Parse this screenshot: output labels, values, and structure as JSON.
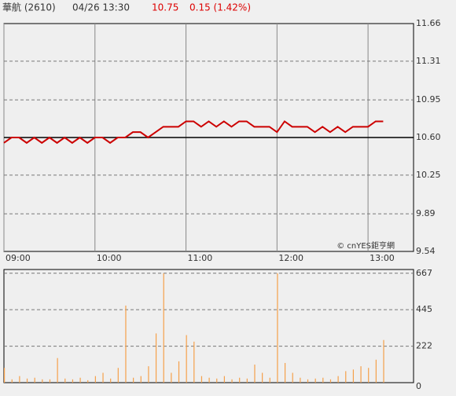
{
  "header": {
    "name": "華航 (2610)",
    "time": "04/26 13:30",
    "price": "10.75",
    "change": "0.15 (1.42%)"
  },
  "watermark": "© cnYES鉅亨網",
  "chart_data": [
    {
      "type": "line",
      "x": [
        540,
        545,
        550,
        555,
        560,
        565,
        570,
        575,
        580,
        585,
        590,
        595,
        600,
        605,
        610,
        615,
        620,
        625,
        630,
        635,
        640,
        645,
        650,
        655,
        660,
        665,
        670,
        675,
        680,
        685,
        690,
        695,
        700,
        705,
        710,
        715,
        720,
        725,
        730,
        735,
        740,
        745,
        750,
        755,
        760,
        765,
        770,
        775,
        780,
        785,
        790
      ],
      "series": [
        {
          "color": "#cc0000",
          "values": [
            10.55,
            10.6,
            10.6,
            10.55,
            10.6,
            10.55,
            10.6,
            10.55,
            10.6,
            10.55,
            10.6,
            10.55,
            10.6,
            10.6,
            10.55,
            10.6,
            10.6,
            10.65,
            10.65,
            10.6,
            10.65,
            10.7,
            10.7,
            10.7,
            10.75,
            10.75,
            10.7,
            10.75,
            10.7,
            10.75,
            10.7,
            10.75,
            10.75,
            10.7,
            10.7,
            10.7,
            10.65,
            10.75,
            10.7,
            10.7,
            10.7,
            10.65,
            10.7,
            10.65,
            10.7,
            10.65,
            10.7,
            10.7,
            10.7,
            10.75,
            10.75
          ]
        }
      ],
      "xlim": [
        540,
        810
      ],
      "xticks": [
        {
          "value": 540,
          "label": "09:00"
        },
        {
          "value": 600,
          "label": "10:00"
        },
        {
          "value": 660,
          "label": "11:00"
        },
        {
          "value": 720,
          "label": "12:00"
        },
        {
          "value": 780,
          "label": "13:00"
        }
      ],
      "ylim": [
        9.54,
        11.66
      ],
      "yticks": [
        9.54,
        9.89,
        10.25,
        {
          "value": 10.6,
          "label": "10.60"
        },
        10.95,
        11.31,
        11.66
      ],
      "reference_line": 10.6,
      "grid": true
    },
    {
      "type": "bar",
      "x": [
        540,
        545,
        550,
        555,
        560,
        565,
        570,
        575,
        580,
        585,
        590,
        595,
        600,
        605,
        610,
        615,
        620,
        625,
        630,
        635,
        640,
        645,
        650,
        655,
        660,
        665,
        670,
        675,
        680,
        685,
        690,
        695,
        700,
        705,
        710,
        715,
        720,
        725,
        730,
        735,
        740,
        745,
        750,
        755,
        760,
        765,
        770,
        775,
        780,
        785,
        790
      ],
      "series": [
        {
          "color": "#f5a04a",
          "values": [
            90,
            20,
            40,
            25,
            30,
            20,
            20,
            150,
            25,
            20,
            30,
            15,
            40,
            60,
            25,
            90,
            470,
            30,
            40,
            100,
            300,
            667,
            60,
            130,
            290,
            250,
            40,
            30,
            25,
            40,
            20,
            30,
            25,
            110,
            60,
            30,
            667,
            120,
            60,
            30,
            20,
            25,
            30,
            20,
            40,
            70,
            80,
            100,
            90,
            140,
            260
          ]
        }
      ],
      "xlim": [
        540,
        810
      ],
      "ylim": [
        0,
        690
      ],
      "yticks": [
        0,
        222,
        445,
        667
      ],
      "grid": true
    }
  ]
}
